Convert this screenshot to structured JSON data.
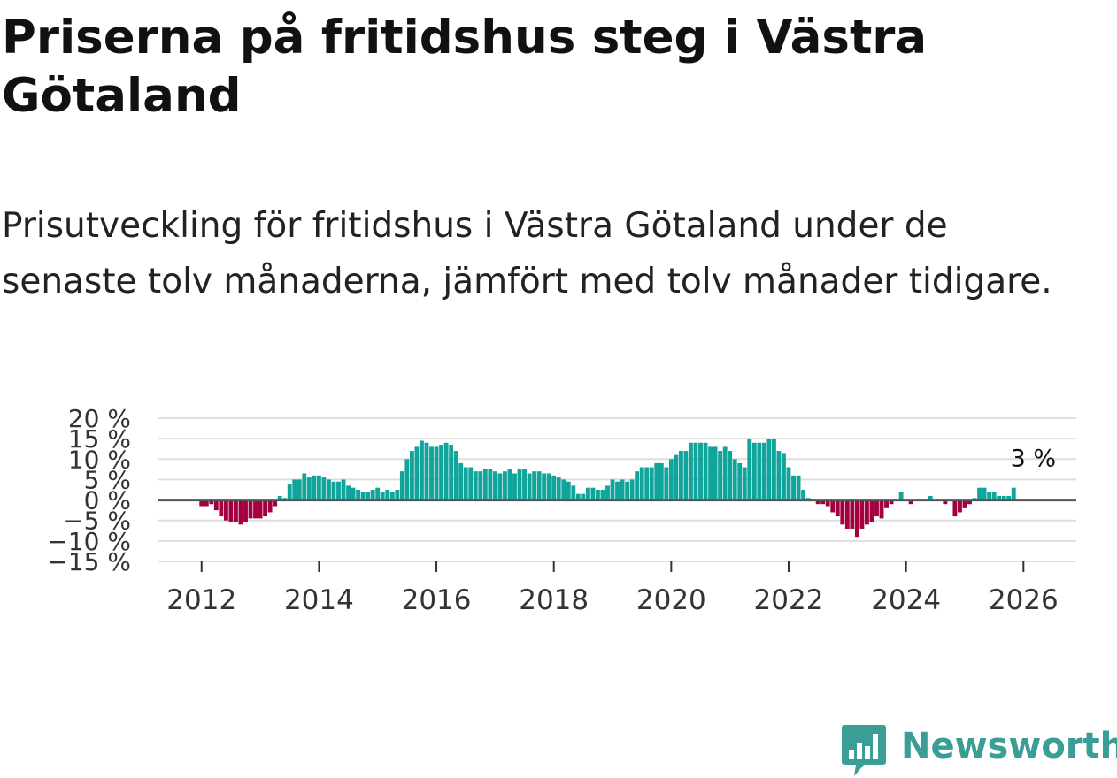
{
  "header": {
    "title": "Priserna på fritidshus steg i Västra Götaland",
    "subtitle": "Prisutveckling för fritidshus i Västra Götaland under de senaste tolv månaderna, jämfört med tolv månader tidigare."
  },
  "brand": {
    "name": "Newsworthy",
    "color": "#3a9e97",
    "icon": "bar-chart-badge-icon"
  },
  "colors": {
    "positive": "#10a49b",
    "negative": "#a3003f",
    "zero_line": "#555555",
    "grid": "#dedede"
  },
  "chart_data": {
    "type": "bar",
    "title": "Priserna på fritidshus steg i Västra Götaland",
    "xlabel": "",
    "ylabel": "",
    "ylim": [
      -15,
      20
    ],
    "xlim": [
      2011.25,
      2026.9
    ],
    "y_ticks": [
      -15,
      -10,
      -5,
      0,
      5,
      10,
      15,
      20
    ],
    "y_tick_labels": [
      "−15 %",
      "−10 %",
      "−5 %",
      "0 %",
      "5 %",
      "10 %",
      "15 %",
      "20 %"
    ],
    "x_ticks": [
      2012,
      2014,
      2016,
      2018,
      2020,
      2022,
      2024,
      2026
    ],
    "x_tick_labels": [
      "2012",
      "2014",
      "2016",
      "2018",
      "2020",
      "2022",
      "2024",
      "2026"
    ],
    "start": "2012-01",
    "frequency": "monthly",
    "grid": true,
    "annotation": {
      "text": "3 %",
      "at": "last"
    },
    "values": [
      -1.5,
      -1.5,
      -1,
      -2.5,
      -4,
      -5,
      -5.5,
      -5.5,
      -6,
      -5.5,
      -4.5,
      -4.5,
      -4.5,
      -4,
      -3,
      -1.5,
      1,
      0.5,
      4,
      5,
      5,
      6.5,
      5.5,
      6,
      6,
      5.5,
      5,
      4.5,
      4.5,
      5,
      3.5,
      3,
      2.5,
      2,
      2,
      2.5,
      3,
      2,
      2.5,
      2,
      2.5,
      7,
      10,
      12,
      13,
      14.5,
      14,
      13,
      13,
      13.5,
      14,
      13.5,
      12,
      9,
      8,
      8,
      7,
      7,
      7.5,
      7.5,
      7,
      6.5,
      7,
      7.5,
      6.5,
      7.5,
      7.5,
      6.5,
      7,
      7,
      6.5,
      6.5,
      6,
      5.5,
      5,
      4.5,
      3.5,
      1.5,
      1.5,
      3,
      3,
      2.5,
      2.5,
      3.5,
      5,
      4.5,
      5,
      4.5,
      5,
      7,
      8,
      8,
      8,
      9,
      9,
      8,
      10,
      11,
      12,
      12,
      14,
      14,
      14,
      14,
      13,
      13,
      12,
      13,
      12,
      10,
      9,
      8,
      15,
      14,
      14,
      14,
      15,
      15,
      12,
      11.5,
      8,
      6,
      6,
      2.5,
      0.5,
      0,
      -1,
      -1,
      -1.5,
      -3,
      -4,
      -6,
      -7,
      -7,
      -9,
      -7,
      -6,
      -5.5,
      -4,
      -4.5,
      -2,
      -1,
      0,
      2,
      0,
      -1,
      0,
      0,
      0,
      1,
      0,
      0,
      -1,
      0,
      -4,
      -3,
      -2,
      -1,
      0.5,
      3,
      3,
      2,
      2,
      1,
      1,
      1,
      3
    ]
  }
}
